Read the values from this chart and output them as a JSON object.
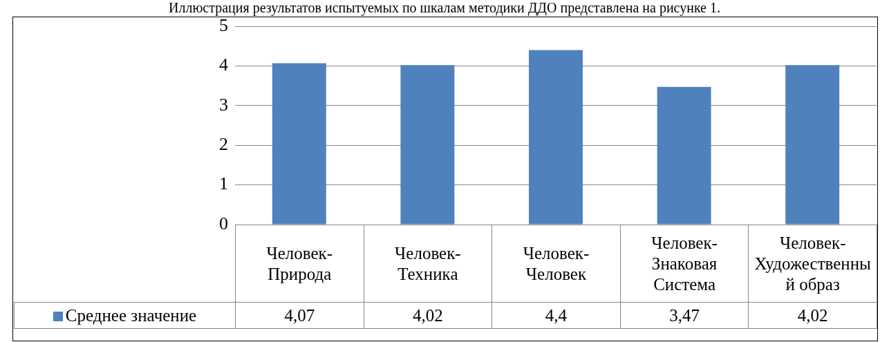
{
  "chart_data": {
    "type": "bar",
    "title": "Иллюстрация результатов испытуемых по шкалам методики ДДО представлена на рисунке 1.",
    "categories": [
      "Человек-Природа",
      "Человек-Техника",
      "Человек-Человек",
      "Человек-Знаковая Система",
      "Человек-Художественный образ"
    ],
    "series": [
      {
        "name": "Среднее значение",
        "color": "#4f81bd",
        "values": [
          4.07,
          4.02,
          4.4,
          3.47,
          4.02
        ],
        "value_labels": [
          "4,07",
          "4,02",
          "4,4",
          "3,47",
          "4,02"
        ]
      }
    ],
    "ylim": [
      0,
      5
    ],
    "yticks": [
      0,
      1,
      2,
      3,
      4,
      5
    ],
    "grid": "y",
    "legend": "bottom"
  }
}
